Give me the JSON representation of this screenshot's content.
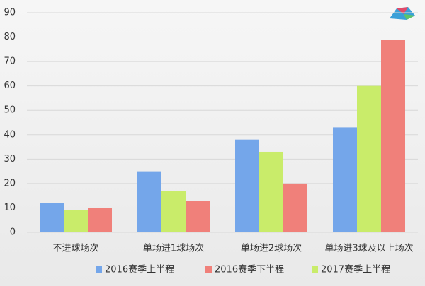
{
  "chart_data": {
    "type": "bar",
    "categories": [
      "不进球场次",
      "单场进1球场次",
      "单场进2球场次",
      "单场进3球及以上场次"
    ],
    "series": [
      {
        "name": "2016赛季上半程",
        "color": "#74a6ea",
        "values": [
          12,
          25,
          38,
          43
        ]
      },
      {
        "name": "2016赛季下半程",
        "color": "#f0807a",
        "values": [
          10,
          13,
          20,
          79
        ]
      },
      {
        "name": "2017赛季上半程",
        "color": "#c9ec6a",
        "values": [
          9,
          17,
          33,
          60
        ]
      }
    ],
    "ylim": [
      0,
      90
    ],
    "yticks": [
      0,
      10,
      20,
      30,
      40,
      50,
      60,
      70,
      80,
      90
    ],
    "grid": true,
    "legend": "bottom"
  }
}
